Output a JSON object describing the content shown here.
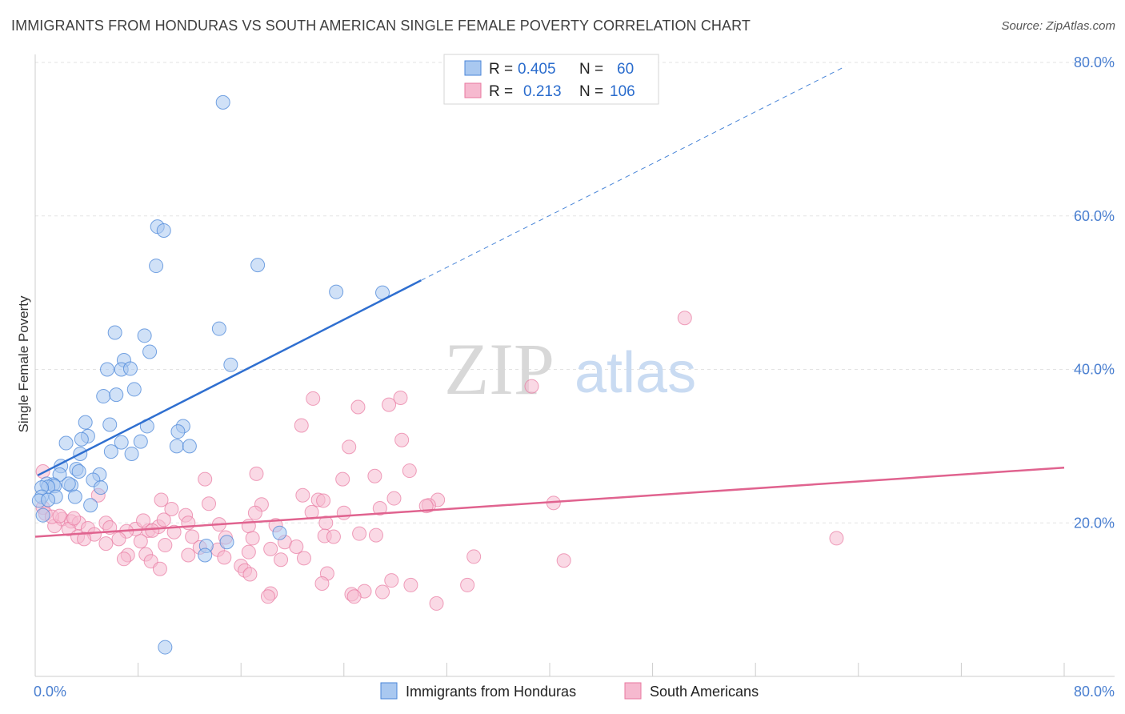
{
  "title": "IMMIGRANTS FROM HONDURAS VS SOUTH AMERICAN SINGLE FEMALE POVERTY CORRELATION CHART",
  "source": "Source: ZipAtlas.com",
  "watermark": {
    "zip": "ZIP",
    "atlas": "atlas"
  },
  "colors": {
    "blue": "#4a86d8",
    "blue_fill": "#a9c8f0",
    "pink": "#e8779f",
    "pink_fill": "#f6b9cf",
    "tick": "#4a7fd0"
  },
  "legend_stats": [
    {
      "r_label": "R =",
      "r_value": "0.405",
      "n_label": "N =",
      "n_value": "60"
    },
    {
      "r_label": "R =",
      "r_value": "0.213",
      "n_label": "N =",
      "n_value": "106"
    }
  ],
  "chart_data": {
    "type": "scatter",
    "title": "IMMIGRANTS FROM HONDURAS VS SOUTH AMERICAN SINGLE FEMALE POVERTY CORRELATION CHART",
    "xlabel": "",
    "ylabel": "Single Female Poverty",
    "xlim": [
      0,
      80
    ],
    "ylim": [
      0,
      80
    ],
    "x_tick_labels": [
      "0.0%",
      "80.0%"
    ],
    "y_ticks": [
      20,
      40,
      60,
      80
    ],
    "y_tick_labels": [
      "20.0%",
      "40.0%",
      "60.0%",
      "80.0%"
    ],
    "grid": true,
    "legend_position": "top-center",
    "series": [
      {
        "name": "Immigrants from Honduras",
        "color": "#4a86d8",
        "trend": {
          "x": [
            0.2,
            30
          ],
          "y": [
            26.2,
            51.6
          ],
          "extrapolate_to": {
            "x": 63,
            "y": 79.5
          }
        },
        "points": [
          [
            14.6,
            74.8
          ],
          [
            9.5,
            58.6
          ],
          [
            10.0,
            58.1
          ],
          [
            9.4,
            53.5
          ],
          [
            17.3,
            53.6
          ],
          [
            23.4,
            50.1
          ],
          [
            27.0,
            50.0
          ],
          [
            14.3,
            45.3
          ],
          [
            6.2,
            44.8
          ],
          [
            8.5,
            44.4
          ],
          [
            15.2,
            40.6
          ],
          [
            8.9,
            42.3
          ],
          [
            6.9,
            41.2
          ],
          [
            5.6,
            40.0
          ],
          [
            6.7,
            40.0
          ],
          [
            7.4,
            40.1
          ],
          [
            7.7,
            37.4
          ],
          [
            5.3,
            36.5
          ],
          [
            6.3,
            36.7
          ],
          [
            3.9,
            33.1
          ],
          [
            5.8,
            32.8
          ],
          [
            8.7,
            32.6
          ],
          [
            11.5,
            32.6
          ],
          [
            11.1,
            31.9
          ],
          [
            4.1,
            31.3
          ],
          [
            3.6,
            30.9
          ],
          [
            2.4,
            30.4
          ],
          [
            6.7,
            30.5
          ],
          [
            8.2,
            30.6
          ],
          [
            11.0,
            30.0
          ],
          [
            12.0,
            30.0
          ],
          [
            5.9,
            29.3
          ],
          [
            7.5,
            29.0
          ],
          [
            3.5,
            29.0
          ],
          [
            2.0,
            27.4
          ],
          [
            3.2,
            27.0
          ],
          [
            3.4,
            26.7
          ],
          [
            1.9,
            26.3
          ],
          [
            5.0,
            26.3
          ],
          [
            4.5,
            25.6
          ],
          [
            0.9,
            25.1
          ],
          [
            1.4,
            25.0
          ],
          [
            1.5,
            24.8
          ],
          [
            1.0,
            24.7
          ],
          [
            0.5,
            24.6
          ],
          [
            2.8,
            24.9
          ],
          [
            2.6,
            25.1
          ],
          [
            5.1,
            24.6
          ],
          [
            1.6,
            23.4
          ],
          [
            0.5,
            23.4
          ],
          [
            3.1,
            23.4
          ],
          [
            0.3,
            22.9
          ],
          [
            4.3,
            22.3
          ],
          [
            1.0,
            23.0
          ],
          [
            19.0,
            18.7
          ],
          [
            13.3,
            17.0
          ],
          [
            14.9,
            17.5
          ],
          [
            13.2,
            15.8
          ],
          [
            10.1,
            3.8
          ],
          [
            0.6,
            21.0
          ]
        ]
      },
      {
        "name": "South Americans",
        "color": "#e8779f",
        "trend": {
          "x": [
            0,
            80
          ],
          "y": [
            18.2,
            27.2
          ]
        },
        "points": [
          [
            50.5,
            46.7
          ],
          [
            38.6,
            37.8
          ],
          [
            21.6,
            36.2
          ],
          [
            28.4,
            36.3
          ],
          [
            27.5,
            35.4
          ],
          [
            25.1,
            35.1
          ],
          [
            20.7,
            32.7
          ],
          [
            28.5,
            30.8
          ],
          [
            24.4,
            29.9
          ],
          [
            29.1,
            26.8
          ],
          [
            17.2,
            26.4
          ],
          [
            26.4,
            26.1
          ],
          [
            23.9,
            25.7
          ],
          [
            13.2,
            25.7
          ],
          [
            4.9,
            23.6
          ],
          [
            20.8,
            23.6
          ],
          [
            9.8,
            23.0
          ],
          [
            22.0,
            23.0
          ],
          [
            22.4,
            22.9
          ],
          [
            27.9,
            23.2
          ],
          [
            31.3,
            23.0
          ],
          [
            30.6,
            22.3
          ],
          [
            0.6,
            26.7
          ],
          [
            13.5,
            22.5
          ],
          [
            17.6,
            22.4
          ],
          [
            26.8,
            21.9
          ],
          [
            40.3,
            22.6
          ],
          [
            10.6,
            21.8
          ],
          [
            11.7,
            21.0
          ],
          [
            21.5,
            21.4
          ],
          [
            17.1,
            21.3
          ],
          [
            24.0,
            21.3
          ],
          [
            30.4,
            22.2
          ],
          [
            0.6,
            22.0
          ],
          [
            2.1,
            20.5
          ],
          [
            2.8,
            20.2
          ],
          [
            3.4,
            20.0
          ],
          [
            5.5,
            20.0
          ],
          [
            7.8,
            19.2
          ],
          [
            8.8,
            19.0
          ],
          [
            9.6,
            19.5
          ],
          [
            11.9,
            20.0
          ],
          [
            14.3,
            19.8
          ],
          [
            16.6,
            19.6
          ],
          [
            18.7,
            19.7
          ],
          [
            22.6,
            20.0
          ],
          [
            8.4,
            20.3
          ],
          [
            10.0,
            20.4
          ],
          [
            1.5,
            19.6
          ],
          [
            2.6,
            19.2
          ],
          [
            4.1,
            19.3
          ],
          [
            5.8,
            19.4
          ],
          [
            7.1,
            18.9
          ],
          [
            9.1,
            19.0
          ],
          [
            10.8,
            18.8
          ],
          [
            12.2,
            18.2
          ],
          [
            14.8,
            18.1
          ],
          [
            16.9,
            18.0
          ],
          [
            19.4,
            17.5
          ],
          [
            22.5,
            18.3
          ],
          [
            25.2,
            18.6
          ],
          [
            26.5,
            18.4
          ],
          [
            3.3,
            18.2
          ],
          [
            4.6,
            18.5
          ],
          [
            6.5,
            17.9
          ],
          [
            8.2,
            17.6
          ],
          [
            10.1,
            17.1
          ],
          [
            12.8,
            16.8
          ],
          [
            14.2,
            16.5
          ],
          [
            16.6,
            16.2
          ],
          [
            18.3,
            16.6
          ],
          [
            20.3,
            16.9
          ],
          [
            5.5,
            17.3
          ],
          [
            3.8,
            17.9
          ],
          [
            7.2,
            15.8
          ],
          [
            8.6,
            15.9
          ],
          [
            6.9,
            15.3
          ],
          [
            11.9,
            15.8
          ],
          [
            14.7,
            15.5
          ],
          [
            19.1,
            15.2
          ],
          [
            20.9,
            15.4
          ],
          [
            16.0,
            14.4
          ],
          [
            9.0,
            15.0
          ],
          [
            9.7,
            14.0
          ],
          [
            16.3,
            13.8
          ],
          [
            22.7,
            13.4
          ],
          [
            34.1,
            15.6
          ],
          [
            41.1,
            15.1
          ],
          [
            16.7,
            13.3
          ],
          [
            22.3,
            12.1
          ],
          [
            27.7,
            12.5
          ],
          [
            29.2,
            11.9
          ],
          [
            33.6,
            11.9
          ],
          [
            25.6,
            11.1
          ],
          [
            27.0,
            11.0
          ],
          [
            24.6,
            10.7
          ],
          [
            24.8,
            10.4
          ],
          [
            31.2,
            9.5
          ],
          [
            18.3,
            10.8
          ],
          [
            18.1,
            10.4
          ],
          [
            0.8,
            21.2
          ],
          [
            1.3,
            20.8
          ],
          [
            3.0,
            20.6
          ],
          [
            23.2,
            18.2
          ],
          [
            62.3,
            18.0
          ],
          [
            1.9,
            20.9
          ]
        ]
      }
    ]
  },
  "bottom_legend": [
    "Immigrants from Honduras",
    "South Americans"
  ]
}
